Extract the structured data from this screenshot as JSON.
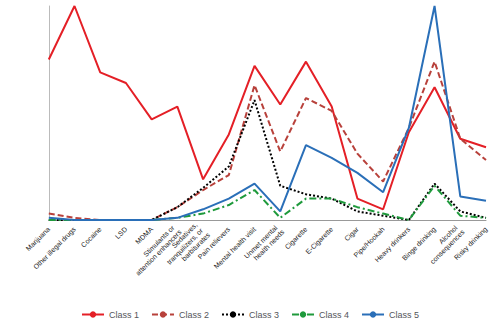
{
  "chart_data": {
    "type": "line",
    "categories": [
      "Marijuana",
      "Other illegal drugs",
      "Cocaine",
      "LSD",
      "MDMA",
      "Stimulants or attention enhancers",
      "Sedatives, tranquilizers, or barbiturates",
      "Pain relievers",
      "Mental health visit",
      "Unmet mental health needs",
      "Cigarette",
      "E-Cigarette",
      "Cigar",
      "Pipe/Hookah",
      "Heavy drinkers",
      "Binge drinking",
      "Alcohol consequences",
      "Risky drinking"
    ],
    "series": [
      {
        "name": "Class 1",
        "color": "#e41f26",
        "line_style": "solid",
        "values": [
          0.75,
          1.0,
          0.69,
          0.64,
          0.47,
          0.53,
          0.19,
          0.4,
          0.72,
          0.54,
          0.74,
          0.53,
          0.1,
          0.05,
          0.41,
          0.62,
          0.38,
          0.34
        ]
      },
      {
        "name": "Class 2",
        "color": "#b8413b",
        "line_style": "dashed",
        "values": [
          0.03,
          0.01,
          0,
          0,
          0,
          0.06,
          0.14,
          0.21,
          0.63,
          0.32,
          0.57,
          0.51,
          0.31,
          0.18,
          0.43,
          0.74,
          0.38,
          0.28
        ]
      },
      {
        "name": "Class 3",
        "color": "#000000",
        "line_style": "dotted",
        "values": [
          0,
          0,
          0,
          0,
          0,
          0.06,
          0.15,
          0.25,
          0.56,
          0.16,
          0.12,
          0.1,
          0.04,
          0.02,
          0,
          0.17,
          0.04,
          0.01
        ]
      },
      {
        "name": "Class 4",
        "color": "#1f9a3c",
        "line_style": "dashdot",
        "values": [
          0,
          0,
          0,
          0,
          0,
          0.01,
          0.03,
          0.07,
          0.14,
          0.01,
          0.1,
          0.1,
          0.06,
          0.03,
          0,
          0.16,
          0.02,
          0.01
        ]
      },
      {
        "name": "Class 5",
        "color": "#2a6fb8",
        "line_style": "solid",
        "values": [
          0.01,
          0,
          0,
          0,
          0,
          0.01,
          0.05,
          0.1,
          0.17,
          0.04,
          0.35,
          0.29,
          0.22,
          0.13,
          0.43,
          1.0,
          0.11,
          0.09
        ]
      }
    ],
    "ylim": [
      0,
      1
    ],
    "grid": false,
    "legend": "bottom",
    "tick_labels": "x"
  }
}
